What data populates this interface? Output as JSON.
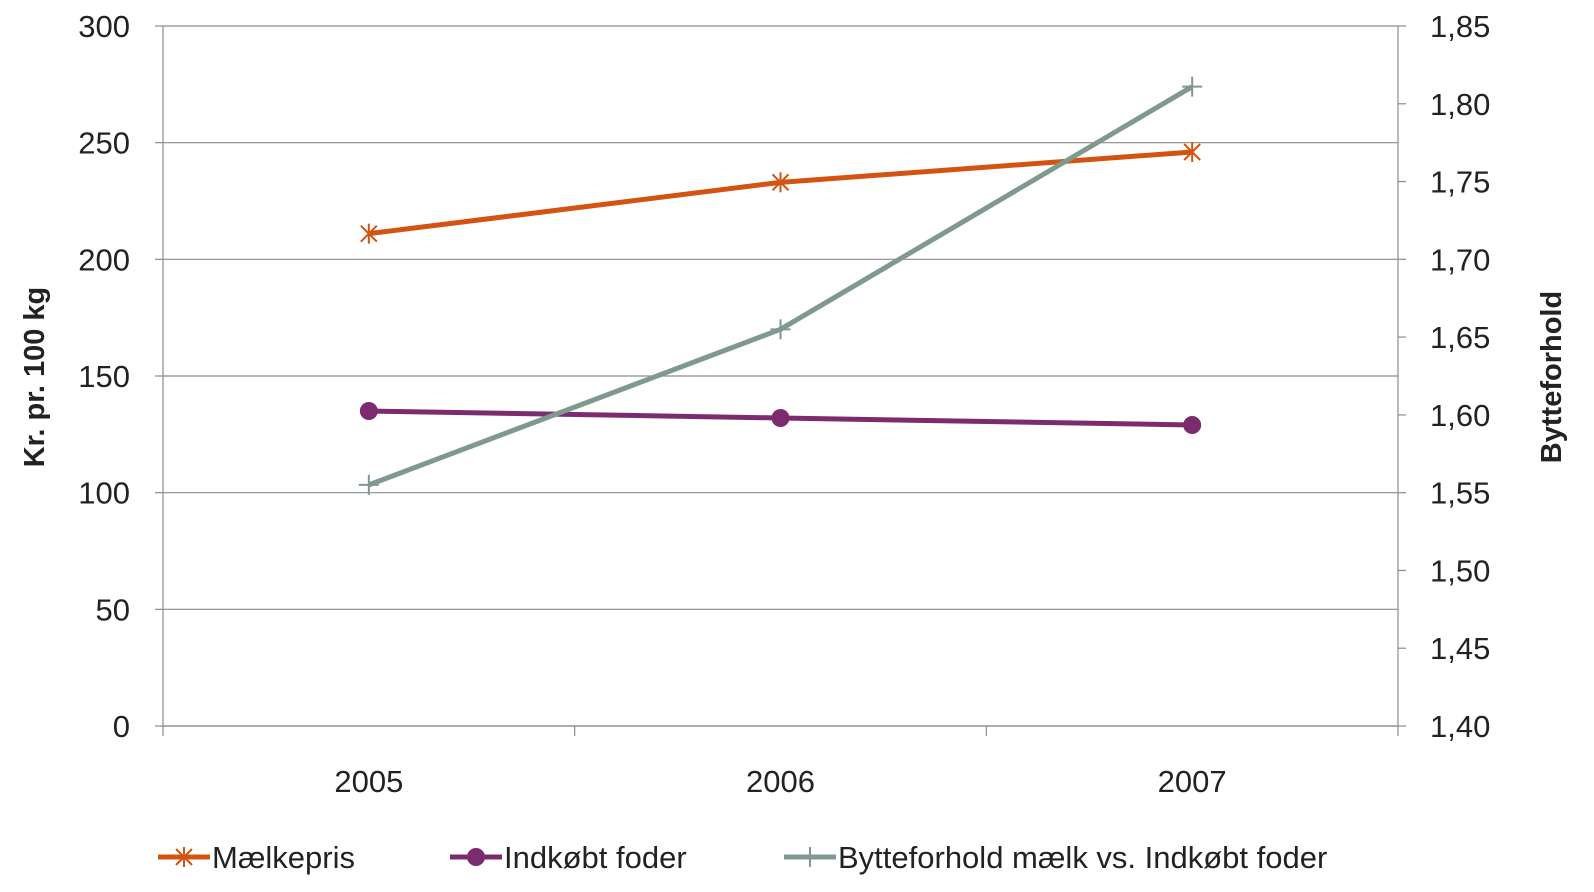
{
  "chart_data": {
    "type": "line",
    "categories": [
      "2005",
      "2006",
      "2007"
    ],
    "series": [
      {
        "name": "Mælkepris",
        "axis": "left",
        "values": [
          211,
          233,
          246
        ],
        "color": "#d35410",
        "marker": "asterisk"
      },
      {
        "name": "Indkøbt foder",
        "axis": "left",
        "values": [
          135,
          132,
          129
        ],
        "color": "#7b2c6e",
        "marker": "circle"
      },
      {
        "name": "Bytteforhold mælk vs. Indkøbt foder",
        "axis": "right",
        "values": [
          1.555,
          1.655,
          1.811
        ],
        "color": "#7f9a8c",
        "marker": "plus"
      }
    ],
    "ylabel": "Kr. pr. 100 kg",
    "y2label": "Bytteforhold",
    "ylim": [
      0,
      300
    ],
    "y2lim": [
      1.4,
      1.85
    ],
    "yticks": [
      "0",
      "50",
      "100",
      "150",
      "200",
      "250",
      "300"
    ],
    "y2ticks": [
      "1,40",
      "1,45",
      "1,50",
      "1,55",
      "1,60",
      "1,65",
      "1,70",
      "1,75",
      "1,80",
      "1,85"
    ],
    "grid": true,
    "legend": "bottom"
  }
}
